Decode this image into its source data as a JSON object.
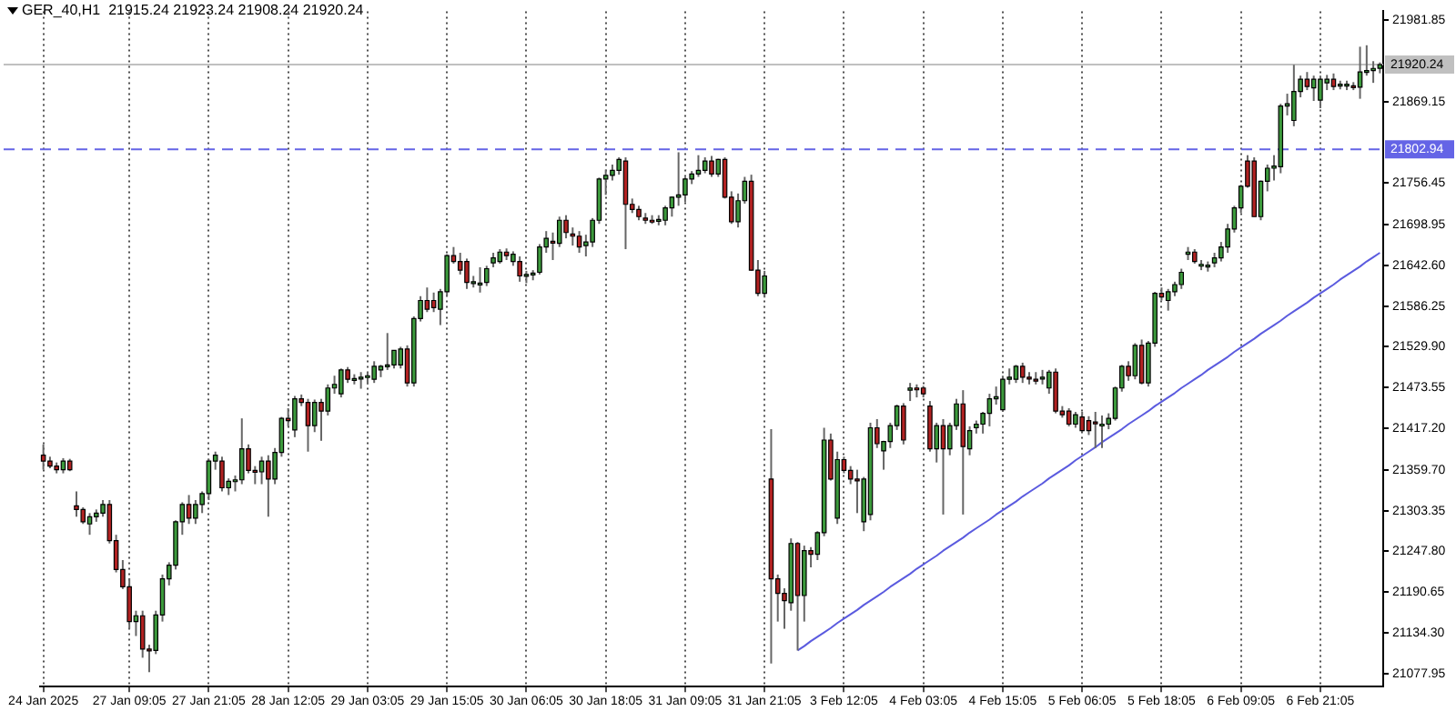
{
  "chart_data": {
    "type": "candlestick",
    "title": "GER_40,H1  21915.24 21923.24 21908.24 21920.24",
    "categories": [
      "24 Jan 2025",
      null,
      null,
      null,
      null,
      null,
      null,
      null,
      null,
      null,
      null,
      null,
      null,
      "27 Jan 09:05",
      null,
      null,
      null,
      null,
      null,
      null,
      null,
      null,
      null,
      null,
      null,
      "27 Jan 21:05",
      null,
      null,
      null,
      null,
      null,
      null,
      null,
      null,
      null,
      null,
      null,
      "28 Jan 12:05",
      null,
      null,
      null,
      null,
      null,
      null,
      null,
      null,
      null,
      null,
      null,
      "29 Jan 03:05",
      null,
      null,
      null,
      null,
      null,
      null,
      null,
      null,
      null,
      null,
      null,
      "29 Jan 15:05",
      null,
      null,
      null,
      null,
      null,
      null,
      null,
      null,
      null,
      null,
      null,
      "30 Jan 06:05",
      null,
      null,
      null,
      null,
      null,
      null,
      null,
      null,
      null,
      null,
      null,
      "30 Jan 18:05",
      null,
      null,
      null,
      null,
      null,
      null,
      null,
      null,
      null,
      null,
      null,
      "31 Jan 09:05",
      null,
      null,
      null,
      null,
      null,
      null,
      null,
      null,
      null,
      null,
      null,
      "31 Jan 21:05",
      null,
      null,
      null,
      null,
      null,
      null,
      null,
      null,
      null,
      null,
      null,
      "3 Feb 12:05",
      null,
      null,
      null,
      null,
      null,
      null,
      null,
      null,
      null,
      null,
      null,
      "4 Feb 03:05",
      null,
      null,
      null,
      null,
      null,
      null,
      null,
      null,
      null,
      null,
      null,
      "4 Feb 15:05",
      null,
      null,
      null,
      null,
      null,
      null,
      null,
      null,
      null,
      null,
      null,
      "5 Feb 06:05",
      null,
      null,
      null,
      null,
      null,
      null,
      null,
      null,
      null,
      null,
      null,
      "5 Feb 18:05",
      null,
      null,
      null,
      null,
      null,
      null,
      null,
      null,
      null,
      null,
      null,
      "6 Feb 09:05",
      null,
      null,
      null,
      null,
      null,
      null,
      null,
      null,
      null,
      null,
      null,
      "6 Feb 21:05",
      null,
      null,
      null,
      null,
      null,
      null,
      null,
      null,
      null
    ],
    "grid": "x",
    "ohlc": [
      [
        21380,
        21395,
        21360,
        21372
      ],
      [
        21372,
        21378,
        21362,
        21365
      ],
      [
        21365,
        21370,
        21355,
        21360
      ],
      [
        21360,
        21376,
        21355,
        21372
      ],
      [
        21372,
        21375,
        21358,
        21360
      ],
      [
        21310,
        21330,
        21295,
        21305
      ],
      [
        21305,
        21308,
        21285,
        21288
      ],
      [
        21285,
        21300,
        21270,
        21295
      ],
      [
        21295,
        21305,
        21288,
        21300
      ],
      [
        21300,
        21318,
        21295,
        21312
      ],
      [
        21312,
        21318,
        21258,
        21262
      ],
      [
        21262,
        21270,
        21218,
        21222
      ],
      [
        21222,
        21235,
        21195,
        21198
      ],
      [
        21198,
        21210,
        21140,
        21150
      ],
      [
        21150,
        21165,
        21130,
        21158
      ],
      [
        21158,
        21165,
        21100,
        21112
      ],
      [
        21112,
        21118,
        21080,
        21110
      ],
      [
        21110,
        21165,
        21105,
        21159
      ],
      [
        21159,
        21215,
        21150,
        21209
      ],
      [
        21209,
        21232,
        21200,
        21228
      ],
      [
        21228,
        21290,
        21222,
        21288
      ],
      [
        21288,
        21315,
        21270,
        21312
      ],
      [
        21312,
        21325,
        21285,
        21293
      ],
      [
        21293,
        21318,
        21285,
        21312
      ],
      [
        21312,
        21330,
        21300,
        21327
      ],
      [
        21327,
        21375,
        21318,
        21372
      ],
      [
        21372,
        21385,
        21360,
        21380
      ],
      [
        21372,
        21378,
        21330,
        21335
      ],
      [
        21335,
        21348,
        21325,
        21344
      ],
      [
        21344,
        21352,
        21330,
        21346
      ],
      [
        21346,
        21431,
        21340,
        21389
      ],
      [
        21389,
        21395,
        21355,
        21359
      ],
      [
        21359,
        21365,
        21340,
        21357
      ],
      [
        21357,
        21378,
        21340,
        21372
      ],
      [
        21372,
        21380,
        21295,
        21347
      ],
      [
        21347,
        21390,
        21340,
        21384
      ],
      [
        21384,
        21433,
        21378,
        21431
      ],
      [
        21431,
        21445,
        21420,
        21428
      ],
      [
        21415,
        21462,
        21405,
        21458
      ],
      [
        21458,
        21464,
        21448,
        21453
      ],
      [
        21453,
        21458,
        21385,
        21421
      ],
      [
        21421,
        21457,
        21412,
        21453
      ],
      [
        21453,
        21458,
        21400,
        21441
      ],
      [
        21441,
        21478,
        21435,
        21473
      ],
      [
        21473,
        21490,
        21465,
        21478
      ],
      [
        21465,
        21500,
        21460,
        21498
      ],
      [
        21498,
        21502,
        21480,
        21485
      ],
      [
        21485,
        21492,
        21478,
        21486
      ],
      [
        21486,
        21495,
        21472,
        21488
      ],
      [
        21488,
        21495,
        21478,
        21490
      ],
      [
        21485,
        21510,
        21480,
        21503
      ],
      [
        21498,
        21505,
        21488,
        21503
      ],
      [
        21503,
        21549,
        21498,
        21505
      ],
      [
        21505,
        21525,
        21500,
        21525
      ],
      [
        21505,
        21530,
        21500,
        21527
      ],
      [
        21527,
        21532,
        21475,
        21480
      ],
      [
        21480,
        21572,
        21475,
        21569
      ],
      [
        21569,
        21600,
        21565,
        21594
      ],
      [
        21594,
        21612,
        21578,
        21582
      ],
      [
        21594,
        21605,
        21578,
        21584
      ],
      [
        21582,
        21610,
        21560,
        21606
      ],
      [
        21606,
        21658,
        21600,
        21656
      ],
      [
        21656,
        21668,
        21645,
        21648
      ],
      [
        21648,
        21660,
        21630,
        21636
      ],
      [
        21648,
        21652,
        21610,
        21619
      ],
      [
        21619,
        21628,
        21612,
        21620
      ],
      [
        21616,
        21640,
        21605,
        21618
      ],
      [
        21619,
        21642,
        21614,
        21638
      ],
      [
        21646,
        21660,
        21640,
        21653
      ],
      [
        21648,
        21665,
        21645,
        21661
      ],
      [
        21661,
        21666,
        21650,
        21656
      ],
      [
        21648,
        21662,
        21642,
        21658
      ],
      [
        21648,
        21655,
        21620,
        21628
      ],
      [
        21628,
        21635,
        21618,
        21630
      ],
      [
        21630,
        21636,
        21622,
        21632
      ],
      [
        21633,
        21672,
        21630,
        21668
      ],
      [
        21668,
        21690,
        21660,
        21680
      ],
      [
        21676,
        21688,
        21650,
        21675
      ],
      [
        21673,
        21710,
        21668,
        21705
      ],
      [
        21705,
        21712,
        21680,
        21688
      ],
      [
        21686,
        21695,
        21670,
        21683
      ],
      [
        21683,
        21690,
        21660,
        21668
      ],
      [
        21670,
        21685,
        21655,
        21675
      ],
      [
        21675,
        21708,
        21668,
        21705
      ],
      [
        21705,
        21764,
        21700,
        21762
      ],
      [
        21762,
        21775,
        21740,
        21767
      ],
      [
        21767,
        21782,
        21760,
        21774
      ],
      [
        21774,
        21792,
        21768,
        21789
      ],
      [
        21787,
        21792,
        21665,
        21727
      ],
      [
        21727,
        21735,
        21715,
        21720
      ],
      [
        21720,
        21725,
        21705,
        21710
      ],
      [
        21708,
        21715,
        21700,
        21705
      ],
      [
        21705,
        21712,
        21700,
        21704
      ],
      [
        21704,
        21712,
        21698,
        21706
      ],
      [
        21705,
        21725,
        21698,
        21722
      ],
      [
        21722,
        21738,
        21710,
        21737
      ],
      [
        21737,
        21799,
        21725,
        21740
      ],
      [
        21740,
        21765,
        21730,
        21762
      ],
      [
        21762,
        21773,
        21755,
        21769
      ],
      [
        21769,
        21795,
        21765,
        21774
      ],
      [
        21774,
        21792,
        21770,
        21787
      ],
      [
        21787,
        21794,
        21765,
        21769
      ],
      [
        21769,
        21790,
        21765,
        21789
      ],
      [
        21789,
        21792,
        21735,
        21737
      ],
      [
        21737,
        21745,
        21700,
        21703
      ],
      [
        21703,
        21742,
        21695,
        21732
      ],
      [
        21732,
        21765,
        21728,
        21759
      ],
      [
        21759,
        21768,
        21635,
        21636
      ],
      [
        21636,
        21650,
        21600,
        21604
      ],
      [
        21604,
        21635,
        21598,
        21628
      ],
      [
        21347,
        21416,
        21092,
        21209
      ],
      [
        21209,
        21215,
        21150,
        21189
      ],
      [
        21189,
        21196,
        21140,
        21179
      ],
      [
        21176,
        21265,
        21165,
        21258
      ],
      [
        21258,
        21260,
        21110,
        21186
      ],
      [
        21186,
        21255,
        21150,
        21248
      ],
      [
        21248,
        21253,
        21225,
        21243
      ],
      [
        21243,
        21275,
        21235,
        21273
      ],
      [
        21273,
        21418,
        21268,
        21401
      ],
      [
        21401,
        21410,
        21345,
        21347
      ],
      [
        21293,
        21385,
        21285,
        21374
      ],
      [
        21374,
        21378,
        21355,
        21359
      ],
      [
        21359,
        21365,
        21340,
        21347
      ],
      [
        21347,
        21360,
        21300,
        21345
      ],
      [
        21288,
        21350,
        21275,
        21347
      ],
      [
        21298,
        21425,
        21290,
        21418
      ],
      [
        21418,
        21430,
        21390,
        21396
      ],
      [
        21386,
        21400,
        21360,
        21399
      ],
      [
        21399,
        21425,
        21390,
        21421
      ],
      [
        21421,
        21450,
        21415,
        21448
      ],
      [
        21448,
        21452,
        21395,
        21401
      ],
      [
        21470,
        21480,
        21455,
        21473
      ],
      [
        21473,
        21478,
        21460,
        21472
      ],
      [
        21473,
        21476,
        21460,
        21465
      ],
      [
        21448,
        21455,
        21385,
        21389
      ],
      [
        21389,
        21425,
        21370,
        21421
      ],
      [
        21421,
        21430,
        21298,
        21389
      ],
      [
        21389,
        21425,
        21380,
        21421
      ],
      [
        21421,
        21458,
        21415,
        21451
      ],
      [
        21451,
        21470,
        21298,
        21392
      ],
      [
        21389,
        21420,
        21380,
        21414
      ],
      [
        21418,
        21428,
        21410,
        21423
      ],
      [
        21423,
        21440,
        21410,
        21438
      ],
      [
        21438,
        21465,
        21420,
        21458
      ],
      [
        21458,
        21475,
        21450,
        21461
      ],
      [
        21443,
        21490,
        21440,
        21485
      ],
      [
        21485,
        21500,
        21478,
        21488
      ],
      [
        21485,
        21505,
        21480,
        21503
      ],
      [
        21503,
        21508,
        21480,
        21488
      ],
      [
        21488,
        21495,
        21478,
        21486
      ],
      [
        21485,
        21495,
        21478,
        21483
      ],
      [
        21486,
        21498,
        21478,
        21488
      ],
      [
        21473,
        21498,
        21465,
        21495
      ],
      [
        21495,
        21500,
        21438,
        21441
      ],
      [
        21441,
        21448,
        21432,
        21436
      ],
      [
        21441,
        21445,
        21420,
        21423
      ],
      [
        21423,
        21440,
        21418,
        21436
      ],
      [
        21433,
        21440,
        21412,
        21414
      ],
      [
        21428,
        21434,
        21408,
        21414
      ],
      [
        21426,
        21440,
        21390,
        21424
      ],
      [
        21421,
        21435,
        21390,
        21423
      ],
      [
        21423,
        21438,
        21416,
        21431
      ],
      [
        21431,
        21475,
        21428,
        21473
      ],
      [
        21473,
        21505,
        21468,
        21503
      ],
      [
        21503,
        21510,
        21483,
        21490
      ],
      [
        21490,
        21535,
        21485,
        21532
      ],
      [
        21532,
        21540,
        21478,
        21480
      ],
      [
        21480,
        21538,
        21475,
        21535
      ],
      [
        21535,
        21606,
        21530,
        21604
      ],
      [
        21604,
        21612,
        21594,
        21599
      ],
      [
        21594,
        21610,
        21580,
        21606
      ],
      [
        21606,
        21620,
        21600,
        21616
      ],
      [
        21616,
        21638,
        21610,
        21633
      ],
      [
        21658,
        21668,
        21650,
        21661
      ],
      [
        21661,
        21665,
        21645,
        21648
      ],
      [
        21643,
        21650,
        21636,
        21644
      ],
      [
        21641,
        21648,
        21634,
        21643
      ],
      [
        21646,
        21660,
        21640,
        21653
      ],
      [
        21653,
        21675,
        21648,
        21668
      ],
      [
        21668,
        21700,
        21660,
        21693
      ],
      [
        21693,
        21725,
        21688,
        21722
      ],
      [
        21722,
        21754,
        21715,
        21752
      ],
      [
        21787,
        21795,
        21750,
        21752
      ],
      [
        21787,
        21792,
        21710,
        21710
      ],
      [
        21710,
        21760,
        21705,
        21759
      ],
      [
        21759,
        21782,
        21745,
        21777
      ],
      [
        21777,
        21795,
        21760,
        21780
      ],
      [
        21779,
        21866,
        21770,
        21863
      ],
      [
        21863,
        21880,
        21850,
        21866
      ],
      [
        21843,
        21920,
        21835,
        21883
      ],
      [
        21883,
        21905,
        21875,
        21900
      ],
      [
        21900,
        21910,
        21885,
        21890
      ],
      [
        21888,
        21905,
        21870,
        21900
      ],
      [
        21871,
        21905,
        21860,
        21900
      ],
      [
        21895,
        21906,
        21885,
        21900
      ],
      [
        21900,
        21908,
        21885,
        21890
      ],
      [
        21892,
        21898,
        21886,
        21893
      ],
      [
        21892,
        21898,
        21885,
        21893
      ],
      [
        21891,
        21896,
        21885,
        21890
      ],
      [
        21889,
        21945,
        21873,
        21910
      ],
      [
        21910,
        21947,
        21905,
        21912
      ],
      [
        21912,
        21925,
        21895,
        21915
      ],
      [
        21915.24,
        21923.24,
        21908.24,
        21920.24
      ]
    ],
    "colors": [
      "#b22222",
      "#b22222",
      "#b22222",
      "#3c9a3c",
      "#b22222",
      "#b22222",
      "#b22222",
      "#3c9a3c",
      "#3c9a3c",
      "#3c9a3c",
      "#b22222",
      "#b22222",
      "#b22222",
      "#b22222",
      "#3c9a3c",
      "#b22222",
      "#b22222",
      "#3c9a3c",
      "#3c9a3c",
      "#3c9a3c",
      "#3c9a3c",
      "#3c9a3c",
      "#b22222",
      "#3c9a3c",
      "#3c9a3c",
      "#3c9a3c",
      "#3c9a3c",
      "#b22222",
      "#3c9a3c",
      "#3c9a3c",
      "#3c9a3c",
      "#b22222",
      "#b22222",
      "#3c9a3c",
      "#b22222",
      "#3c9a3c",
      "#3c9a3c",
      "#b22222",
      "#3c9a3c",
      "#b22222",
      "#b22222",
      "#3c9a3c",
      "#b22222",
      "#3c9a3c",
      "#3c9a3c",
      "#3c9a3c",
      "#b22222",
      "#3c9a3c",
      "#3c9a3c",
      "#3c9a3c",
      "#3c9a3c",
      "#3c9a3c",
      "#3c9a3c",
      "#3c9a3c",
      "#3c9a3c",
      "#b22222",
      "#3c9a3c",
      "#3c9a3c",
      "#b22222",
      "#b22222",
      "#3c9a3c",
      "#3c9a3c",
      "#b22222",
      "#b22222",
      "#b22222",
      "#3c9a3c",
      "#3c9a3c",
      "#3c9a3c",
      "#3c9a3c",
      "#3c9a3c",
      "#b22222",
      "#3c9a3c",
      "#b22222",
      "#3c9a3c",
      "#3c9a3c",
      "#3c9a3c",
      "#3c9a3c",
      "#b22222",
      "#3c9a3c",
      "#b22222",
      "#b22222",
      "#b22222",
      "#3c9a3c",
      "#3c9a3c",
      "#3c9a3c",
      "#3c9a3c",
      "#3c9a3c",
      "#3c9a3c",
      "#b22222",
      "#b22222",
      "#b22222",
      "#b22222",
      "#b22222",
      "#3c9a3c",
      "#3c9a3c",
      "#3c9a3c",
      "#3c9a3c",
      "#3c9a3c",
      "#3c9a3c",
      "#3c9a3c",
      "#3c9a3c",
      "#b22222",
      "#3c9a3c",
      "#b22222",
      "#b22222",
      "#3c9a3c",
      "#3c9a3c",
      "#b22222",
      "#b22222",
      "#3c9a3c",
      "#b22222",
      "#b22222",
      "#b22222",
      "#3c9a3c",
      "#b22222",
      "#3c9a3c",
      "#b22222",
      "#3c9a3c",
      "#3c9a3c",
      "#b22222",
      "#3c9a3c",
      "#b22222",
      "#b22222",
      "#b22222",
      "#3c9a3c",
      "#3c9a3c",
      "#b22222",
      "#3c9a3c",
      "#3c9a3c",
      "#3c9a3c",
      "#b22222",
      "#3c9a3c",
      "#b22222",
      "#b22222",
      "#b22222",
      "#3c9a3c",
      "#b22222",
      "#3c9a3c",
      "#3c9a3c",
      "#b22222",
      "#3c9a3c",
      "#3c9a3c",
      "#3c9a3c",
      "#3c9a3c",
      "#3c9a3c",
      "#3c9a3c",
      "#3c9a3c",
      "#3c9a3c",
      "#b22222",
      "#b22222",
      "#b22222",
      "#3c9a3c",
      "#3c9a3c",
      "#b22222",
      "#b22222",
      "#b22222",
      "#3c9a3c",
      "#b22222",
      "#b22222",
      "#b22222",
      "#3c9a3c",
      "#3c9a3c",
      "#3c9a3c",
      "#3c9a3c",
      "#b22222",
      "#3c9a3c",
      "#b22222",
      "#3c9a3c",
      "#3c9a3c",
      "#b22222",
      "#3c9a3c",
      "#3c9a3c",
      "#3c9a3c",
      "#3c9a3c",
      "#b22222",
      "#3c9a3c",
      "#3c9a3c",
      "#3c9a3c",
      "#3c9a3c",
      "#3c9a3c",
      "#3c9a3c",
      "#3c9a3c",
      "#b22222",
      "#b22222",
      "#3c9a3c",
      "#3c9a3c",
      "#3c9a3c",
      "#3c9a3c",
      "#3c9a3c",
      "#3c9a3c",
      "#3c9a3c",
      "#b22222",
      "#3c9a3c",
      "#3c9a3c",
      "#3c9a3c",
      "#b22222",
      "#3c9a3c",
      "#3c9a3c",
      "#b22222",
      "#3c9a3c",
      "#3c9a3c",
      "#3c9a3c",
      "#3c9a3c"
    ],
    "series": [
      {
        "type": "line",
        "color": "#5b5bdf",
        "values": [
          null,
          null,
          null,
          null,
          null,
          null,
          null,
          null,
          null,
          null,
          null,
          null,
          null,
          null,
          null,
          null,
          null,
          null,
          null,
          null,
          null,
          null,
          null,
          null,
          null,
          null,
          null,
          null,
          null,
          null,
          null,
          null,
          null,
          null,
          null,
          null,
          null,
          null,
          null,
          null,
          null,
          null,
          null,
          null,
          null,
          null,
          null,
          null,
          null,
          null,
          null,
          null,
          null,
          null,
          null,
          null,
          null,
          null,
          null,
          null,
          null,
          null,
          null,
          null,
          null,
          null,
          null,
          null,
          null,
          null,
          null,
          null,
          null,
          null,
          null,
          null,
          null,
          null,
          null,
          null,
          null,
          null,
          null,
          null,
          null,
          null,
          null,
          null,
          null,
          null,
          null,
          null,
          null,
          null,
          null,
          null,
          null,
          null,
          null,
          null,
          null,
          null,
          null,
          null,
          null,
          null,
          null,
          null,
          null,
          null,
          null,
          null,
          null,
          null,
          21110,
          21116,
          21123,
          21129,
          21135,
          21141,
          21148,
          21154,
          21160,
          21166,
          21173,
          21179,
          21185,
          21191,
          21198,
          21204,
          21210,
          21216,
          21223,
          21229,
          21235,
          21241,
          21248,
          21254,
          21260,
          21266,
          21273,
          21279,
          21285,
          21291,
          21298,
          21304,
          21310,
          21316,
          21323,
          21329,
          21335,
          21341,
          21348,
          21354,
          21360,
          21366,
          21373,
          21379,
          21385,
          21391,
          21398,
          21404,
          21410,
          21416,
          21423,
          21429,
          21435,
          21441,
          21448,
          21454,
          21460,
          21466,
          21473,
          21479,
          21485,
          21491,
          21498,
          21504,
          21510,
          21516,
          21523,
          21529,
          21535,
          21541,
          21548,
          21554,
          21560,
          21566,
          21573,
          21579,
          21585,
          21591,
          21598,
          21604,
          21610,
          21616,
          21623,
          21629,
          21635,
          21641,
          21648,
          21654,
          21660
        ]
      }
    ],
    "ylim": [
      21060,
      21994
    ],
    "yticks": [
      21981.85,
      21869.15,
      21756.45,
      21698.95,
      {
        "value": 21642.6,
        "label": "21642.60"
      },
      21586.25,
      {
        "value": 21529.9,
        "label": "21529.90"
      },
      21473.55,
      {
        "value": 21417.2,
        "label": "21417.20"
      },
      {
        "value": 21359.7,
        "label": "21359.70"
      },
      21303.35,
      {
        "value": 21247.8,
        "label": "21247.80"
      },
      21190.65,
      {
        "value": 21134.3,
        "label": "21134.30"
      },
      21077.95
    ],
    "ref_lines": [
      {
        "axis": "y",
        "value": 21920.24,
        "label": "21920.24",
        "color": "#c0c0c0",
        "line_style": "solid"
      },
      {
        "axis": "y",
        "value": 21802.94,
        "label": "21802.94",
        "color": "#6464e6",
        "line_style": "dashed"
      }
    ]
  }
}
